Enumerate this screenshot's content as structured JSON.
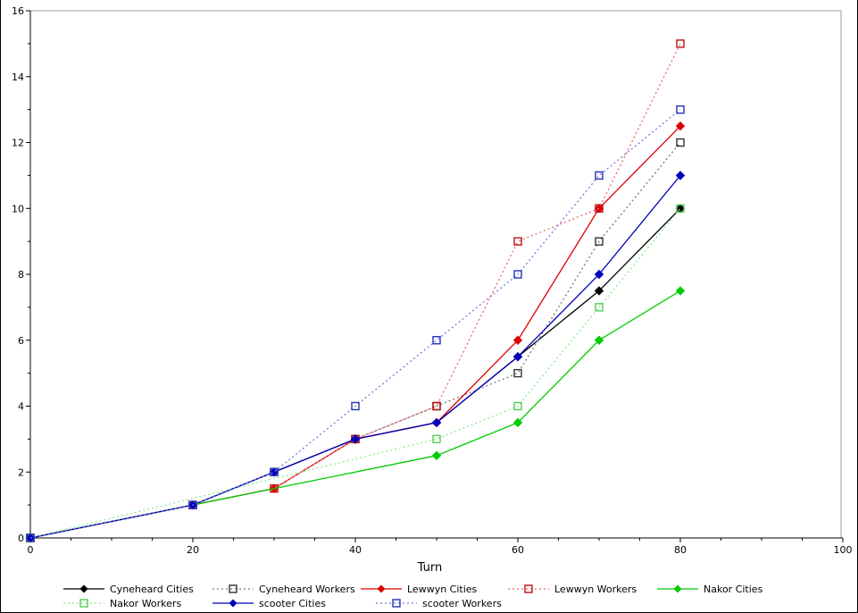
{
  "chart_data": {
    "type": "line",
    "title": "",
    "xlabel": "Turn",
    "ylabel": "",
    "xlim": [
      0,
      100
    ],
    "ylim": [
      0,
      16
    ],
    "x_major_ticks": [
      0,
      20,
      40,
      60,
      80,
      100
    ],
    "x_minor_step": 5,
    "y_major_ticks": [
      0,
      2,
      4,
      6,
      8,
      10,
      12,
      14,
      16
    ],
    "y_minor_step": 1,
    "grid": false,
    "legend_position": "bottom",
    "series": [
      {
        "name": "Cyneheard Cities",
        "color": "#000000",
        "marker": "diamond",
        "marker_color": "#000000",
        "line_style": "solid",
        "x": [
          0,
          20,
          30,
          40,
          50,
          60,
          70,
          80
        ],
        "y": [
          0,
          1,
          2,
          3,
          3.5,
          5.5,
          7.5,
          10
        ]
      },
      {
        "name": "Cyneheard Workers",
        "color": "#777777",
        "marker": "square-open",
        "marker_color": "#333333",
        "line_style": "dotted",
        "x": [
          0,
          20,
          30,
          40,
          50,
          60,
          70,
          80
        ],
        "y": [
          0,
          1,
          2,
          3,
          4,
          5,
          9,
          12
        ]
      },
      {
        "name": "Lewwyn Cities",
        "color": "#dd0000",
        "marker": "diamond",
        "marker_color": "#dd0000",
        "line_style": "solid",
        "x": [
          0,
          20,
          30,
          40,
          50,
          60,
          70,
          80
        ],
        "y": [
          0,
          1,
          1.5,
          3,
          3.5,
          6,
          10,
          12.5
        ]
      },
      {
        "name": "Lewwyn Workers",
        "color": "#ee6666",
        "marker": "square-open",
        "marker_color": "#bb1111",
        "line_style": "dotted",
        "x": [
          0,
          20,
          30,
          40,
          50,
          60,
          70,
          80
        ],
        "y": [
          0,
          1,
          1.5,
          3,
          4,
          9,
          10,
          15
        ]
      },
      {
        "name": "Nakor Cities",
        "color": "#00cc00",
        "marker": "diamond",
        "marker_color": "#00cc00",
        "line_style": "solid",
        "x": [
          0,
          50,
          60,
          70,
          80
        ],
        "y": [
          0,
          2.5,
          3.5,
          6,
          7.5
        ]
      },
      {
        "name": "Nakor Workers",
        "color": "#88ee88",
        "marker": "square-open",
        "marker_color": "#55cc55",
        "line_style": "dotted",
        "x": [
          0,
          50,
          60,
          70,
          80
        ],
        "y": [
          0,
          3,
          4,
          7,
          10
        ]
      },
      {
        "name": "scooter Cities",
        "color": "#0000bb",
        "marker": "diamond",
        "marker_color": "#0000bb",
        "line_style": "solid",
        "x": [
          0,
          20,
          30,
          40,
          50,
          60,
          70,
          80
        ],
        "y": [
          0,
          1,
          2,
          3,
          3.5,
          5.5,
          8,
          11
        ]
      },
      {
        "name": "scooter Workers",
        "color": "#7777dd",
        "marker": "square-open",
        "marker_color": "#2233bb",
        "line_style": "dotted",
        "x": [
          0,
          20,
          30,
          40,
          50,
          60,
          70,
          80
        ],
        "y": [
          0,
          1,
          2,
          4,
          6,
          8,
          11,
          13
        ]
      }
    ],
    "legend_rows": [
      [
        "Cyneheard Cities",
        "Cyneheard Workers",
        "Lewwyn Cities",
        "Lewwyn Workers",
        "Nakor Cities"
      ],
      [
        "Nakor Workers",
        "scooter Cities",
        "scooter Workers"
      ]
    ],
    "axis_color": "#000000",
    "box_border_color": "#999999",
    "background_color": "#ffffff"
  }
}
